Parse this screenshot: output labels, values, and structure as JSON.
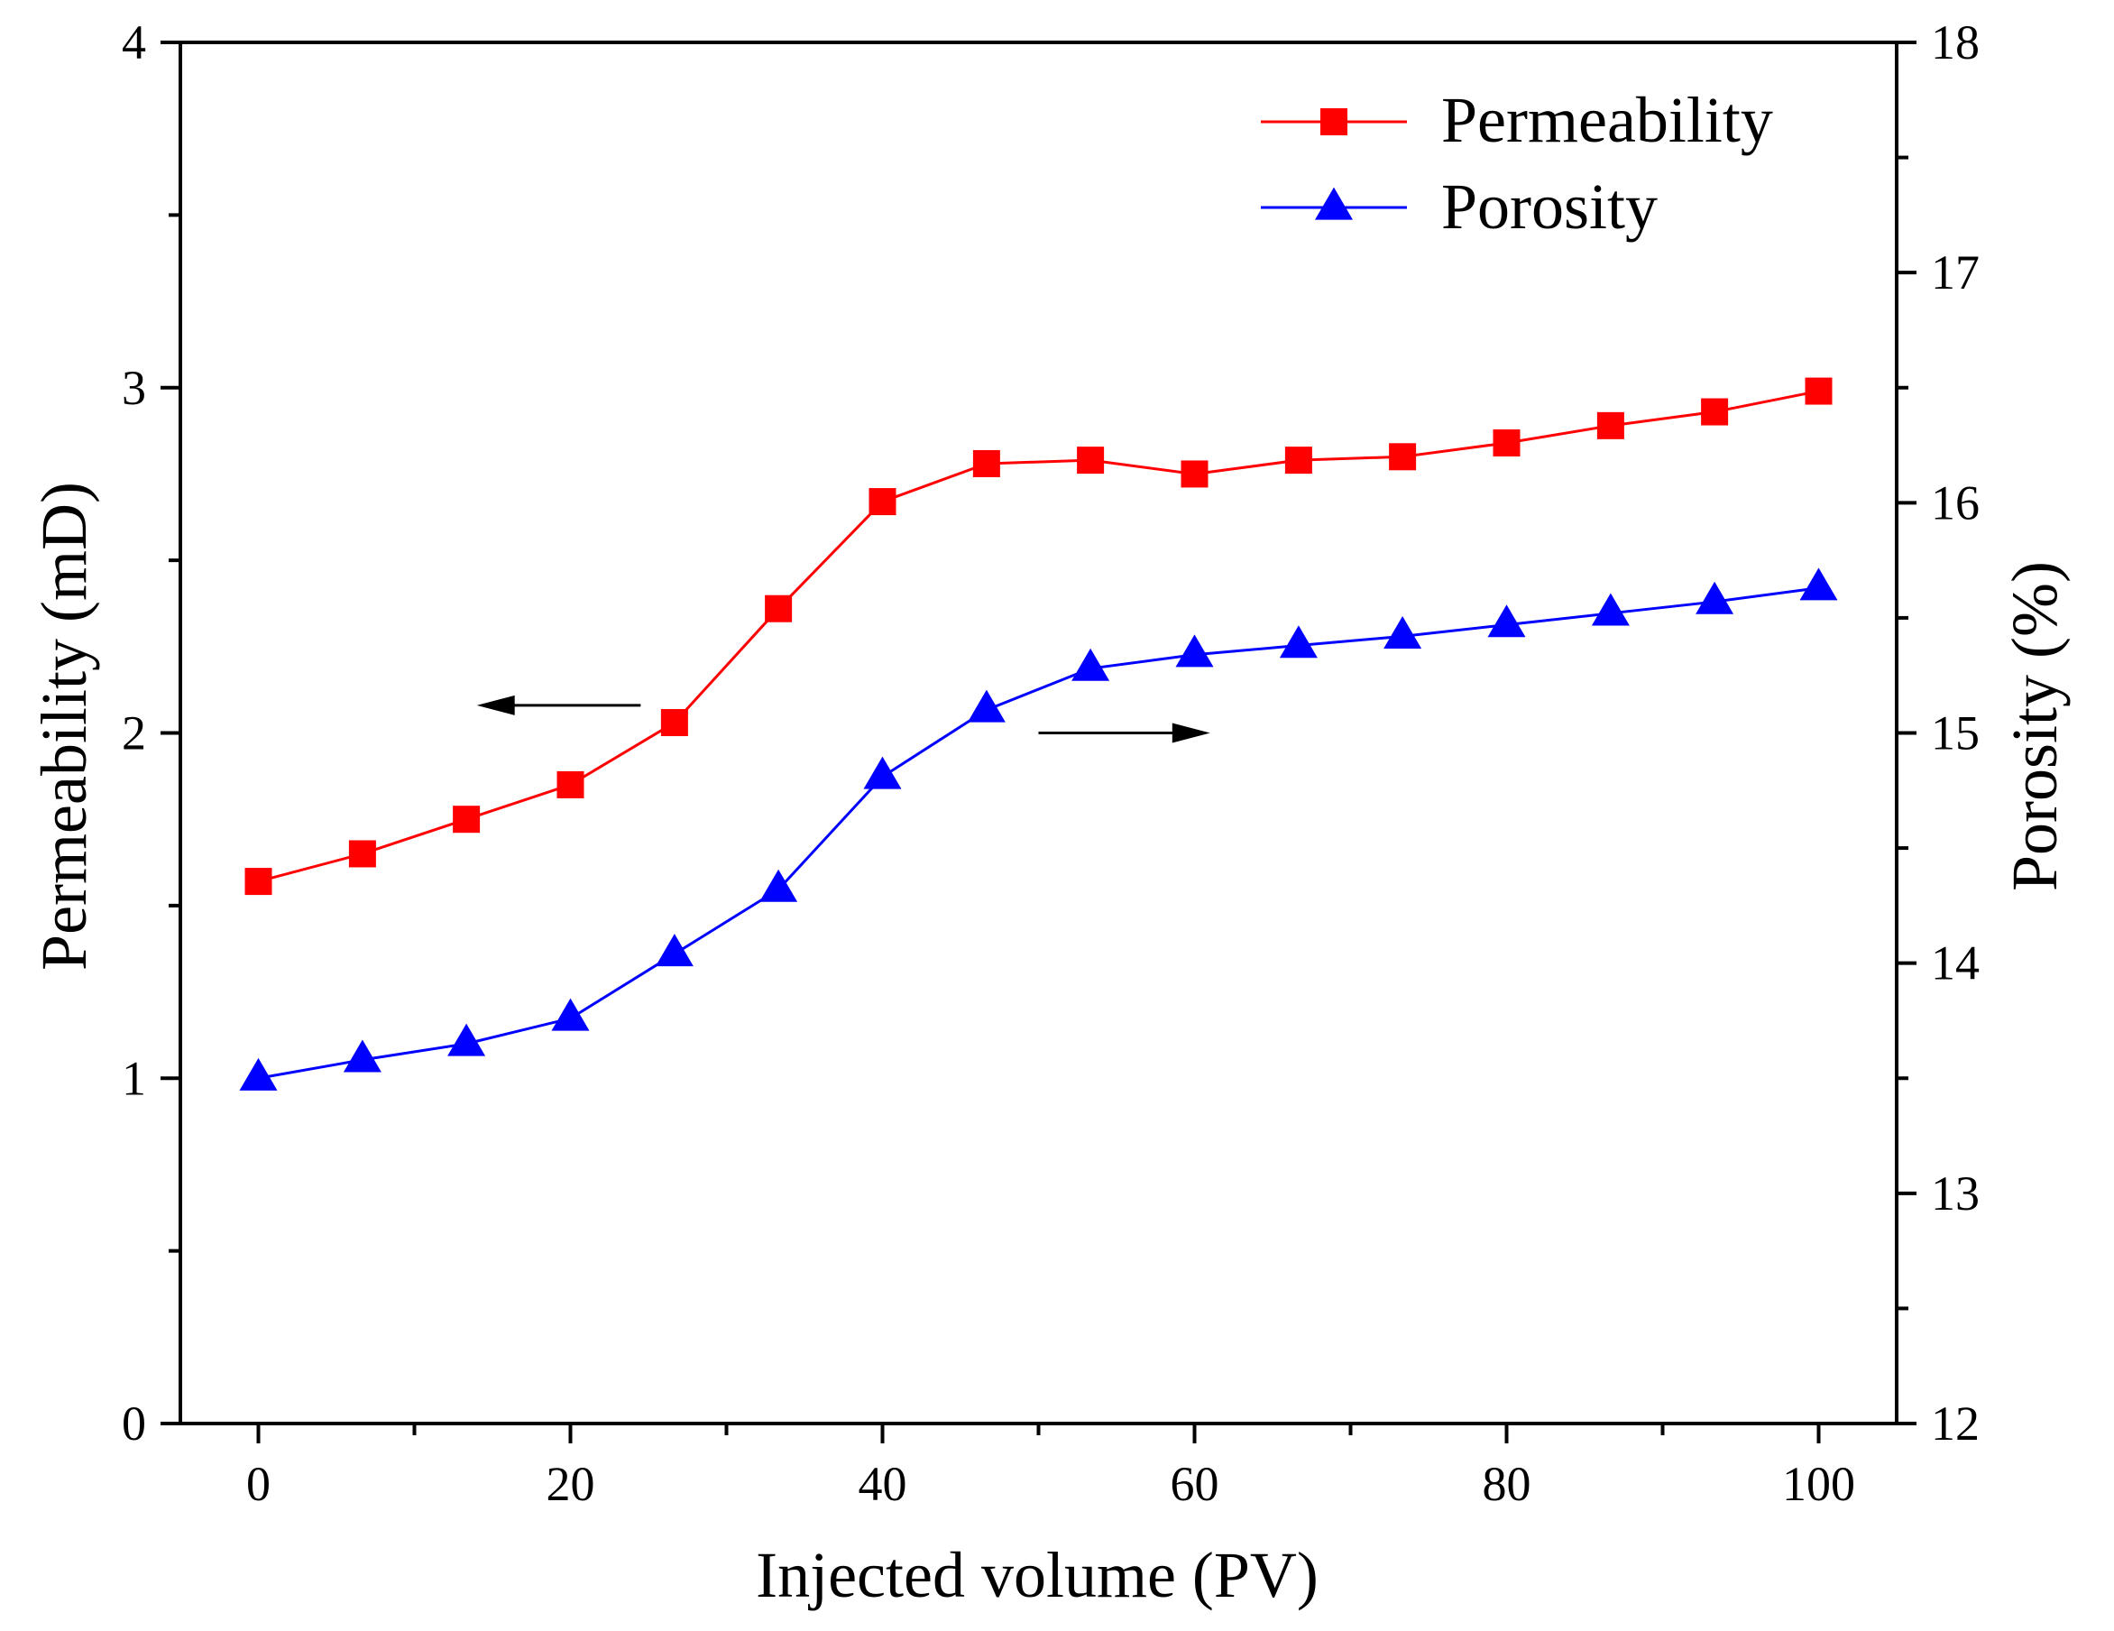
{
  "chart_data": {
    "type": "line",
    "title": "",
    "xlabel": "Injected volume (PV)",
    "ylabel": "Permeability (mD)",
    "y2label": "Porosity (%)",
    "xlim": [
      -5,
      105
    ],
    "ylim": [
      0,
      4
    ],
    "y2lim": [
      12,
      18
    ],
    "xticks": [
      "0",
      "20",
      "40",
      "60",
      "80",
      "100"
    ],
    "yticks": [
      "0",
      "1",
      "2",
      "3",
      "4"
    ],
    "y2ticks": [
      "12",
      "13",
      "14",
      "15",
      "16",
      "17",
      "18"
    ],
    "x": [
      0,
      6.67,
      13.33,
      20,
      26.67,
      33.33,
      40,
      46.67,
      53.33,
      60,
      66.67,
      73.33,
      80,
      86.67,
      93.33,
      100
    ],
    "series": [
      {
        "name": "Permeability",
        "axis": "left",
        "color": "#ff0000",
        "marker": "square",
        "values": [
          1.57,
          1.65,
          1.75,
          1.85,
          2.03,
          2.36,
          2.67,
          2.78,
          2.79,
          2.75,
          2.79,
          2.8,
          2.84,
          2.89,
          2.93,
          2.99
        ]
      },
      {
        "name": "Porosity",
        "axis": "right",
        "color": "#0000ff",
        "marker": "triangle",
        "values": [
          13.5,
          13.58,
          13.65,
          13.76,
          14.04,
          14.32,
          14.81,
          15.1,
          15.28,
          15.34,
          15.38,
          15.42,
          15.47,
          15.52,
          15.57,
          15.63
        ]
      }
    ],
    "legend": {
      "position": "top-right"
    },
    "annotations": [
      {
        "type": "arrow",
        "direction": "left",
        "meaning": "Permeability uses left axis"
      },
      {
        "type": "arrow",
        "direction": "right",
        "meaning": "Porosity uses right axis"
      }
    ],
    "grid": false
  }
}
